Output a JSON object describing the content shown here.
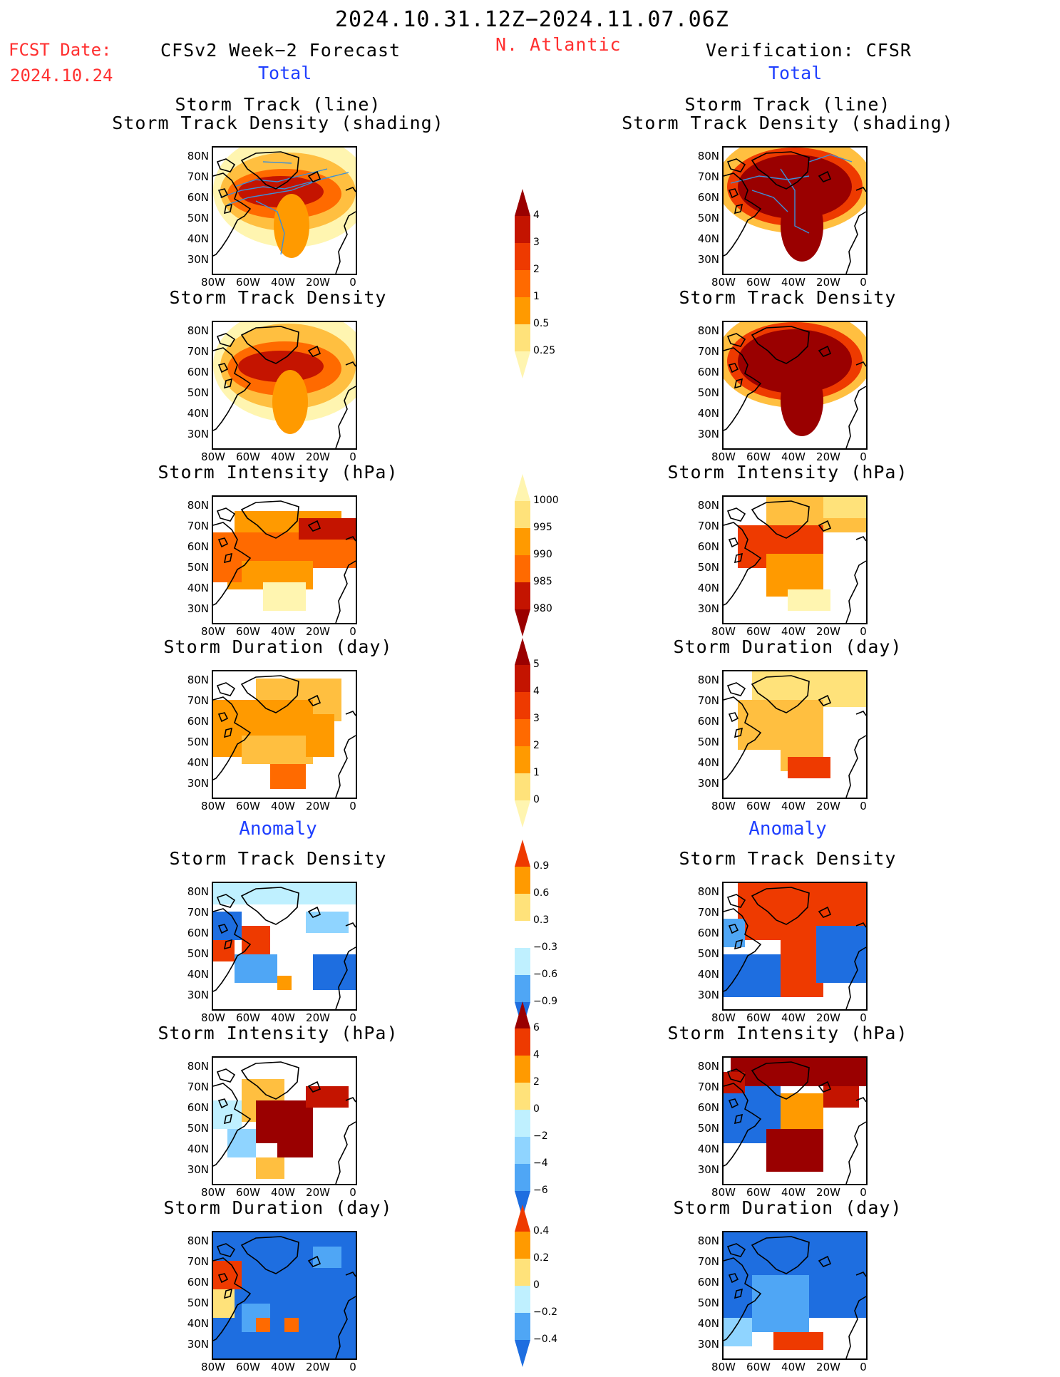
{
  "header": {
    "period": "2024.10.31.12Z−2024.11.07.06Z",
    "region": "N. Atlantic",
    "fcst_label": "FCST Date:",
    "fcst_date": "2024.10.24",
    "left_title": "CFSv2 Week−2 Forecast",
    "right_title": "Verification: CFSR",
    "total": "Total",
    "anomaly": "Anomaly"
  },
  "panels": {
    "track_line_1": "Storm Track (line)",
    "track_line_2": "Storm Track Density (shading)",
    "density": "Storm Track Density",
    "intensity": "Storm Intensity (hPa)",
    "duration": "Storm Duration (day)"
  },
  "axes": {
    "y": [
      "80N",
      "70N",
      "60N",
      "50N",
      "40N",
      "30N"
    ],
    "x": [
      "80W",
      "60W",
      "40W",
      "20W",
      "0"
    ]
  },
  "colorbars": {
    "density": [
      "4",
      "3",
      "2",
      "1",
      "0.5",
      "0.25"
    ],
    "intensity": [
      "1000",
      "995",
      "990",
      "985",
      "980"
    ],
    "duration": [
      "5",
      "4",
      "3",
      "2",
      "1",
      "0"
    ],
    "anom_density": [
      "0.9",
      "0.6",
      "0.3",
      "−0.3",
      "−0.6",
      "−0.9"
    ],
    "anom_intensity": [
      "6",
      "4",
      "2",
      "0",
      "−2",
      "−4",
      "−6"
    ],
    "anom_duration": [
      "0.4",
      "0.2",
      "0",
      "−0.2",
      "−0.4"
    ]
  },
  "colors": {
    "warm": [
      "#fff5b0",
      "#ffe27a",
      "#ffbf40",
      "#ff9a00",
      "#ff6a00",
      "#ee3a00",
      "#c41400",
      "#9a0000"
    ],
    "cool": [
      "#bff0ff",
      "#8fd4ff",
      "#4fa6f5",
      "#1e6ee0"
    ],
    "track_line": "#3c8fd8"
  }
}
